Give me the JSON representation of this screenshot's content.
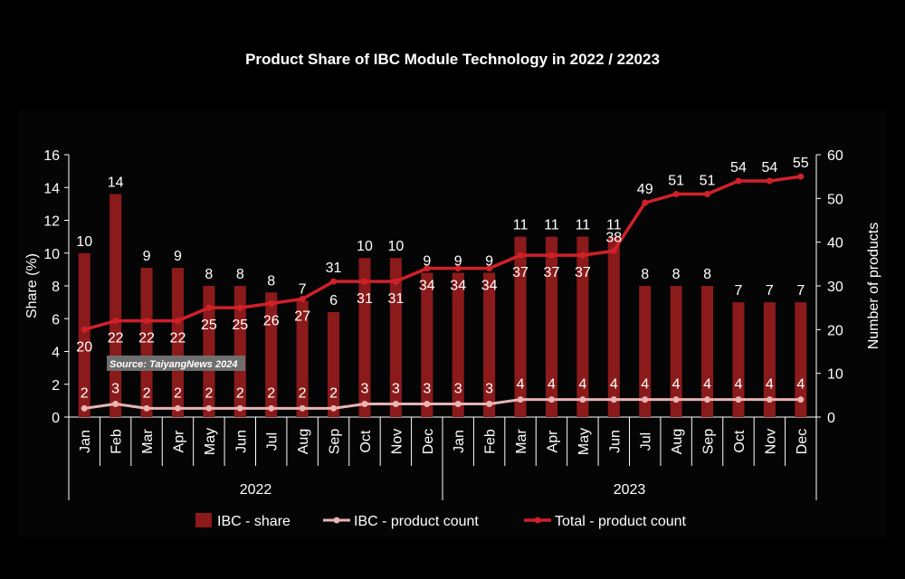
{
  "chart_data": {
    "type": "bar",
    "title": "Product Share of IBC Module Technology in 2022 / 22023",
    "ylabel": "Share (%)",
    "y2label": "Number of products",
    "ylim": [
      0,
      16
    ],
    "y2lim": [
      0,
      60
    ],
    "yticks": [
      "0",
      "2",
      "4",
      "6",
      "8",
      "10",
      "12",
      "14",
      "16"
    ],
    "y2ticks": [
      "0",
      "10",
      "20",
      "30",
      "40",
      "50",
      "60"
    ],
    "categories": [
      "Jan",
      "Feb",
      "Mar",
      "Apr",
      "May",
      "Jun",
      "Jul",
      "Aug",
      "Sep",
      "Oct",
      "Nov",
      "Dec",
      "Jan",
      "Feb",
      "Mar",
      "Apr",
      "May",
      "Jun",
      "Jul",
      "Aug",
      "Sep",
      "Oct",
      "Nov",
      "Dec"
    ],
    "groups": [
      {
        "label": "2022",
        "count": 12
      },
      {
        "label": "2023",
        "count": 12
      }
    ],
    "series": [
      {
        "name": "IBC - share",
        "type": "bar",
        "axis": "left",
        "color": "#8b1a1a",
        "values": [
          10,
          13.6,
          9.1,
          9.1,
          8,
          8,
          7.6,
          7.1,
          6.4,
          9.7,
          9.7,
          8.8,
          8.8,
          8.8,
          11,
          11,
          11,
          11,
          8,
          8,
          8,
          7,
          7,
          7
        ],
        "labels": [
          "10",
          "14",
          "9",
          "9",
          "8",
          "8",
          "8",
          "7",
          "6",
          "10",
          "10",
          "9",
          "9",
          "9",
          "11",
          "11",
          "11",
          "11",
          "8",
          "8",
          "8",
          "7",
          "7",
          "7"
        ]
      },
      {
        "name": "IBC - product count",
        "type": "line",
        "axis": "right",
        "color": "#e8b4b4",
        "values": [
          2,
          3,
          2,
          2,
          2,
          2,
          2,
          2,
          2,
          3,
          3,
          3,
          3,
          3,
          4,
          4,
          4,
          4,
          4,
          4,
          4,
          4,
          4,
          4
        ],
        "labels": [
          "2",
          "3",
          "2",
          "2",
          "2",
          "2",
          "2",
          "2",
          "2",
          "3",
          "3",
          "3",
          "3",
          "3",
          "4",
          "4",
          "4",
          "4",
          "4",
          "4",
          "4",
          "4",
          "4",
          "4"
        ]
      },
      {
        "name": "Total - product count",
        "type": "line",
        "axis": "right",
        "color": "#d0202a",
        "values": [
          20,
          22,
          22,
          22,
          25,
          25,
          26,
          27,
          31,
          31,
          31,
          34,
          34,
          34,
          37,
          37,
          37,
          38,
          49,
          51,
          51,
          54,
          54,
          55
        ],
        "labels": [
          "20",
          "22",
          "22",
          "22",
          "25",
          "25",
          "26",
          "27",
          "31",
          "31",
          "31",
          "34",
          "34",
          "34",
          "37",
          "37",
          "37",
          "38",
          "49",
          "51",
          "51",
          "54",
          "54",
          "55"
        ]
      }
    ],
    "legend_position": "bottom",
    "grid": false
  },
  "watermark": "Source: TaiyangNews 2024"
}
